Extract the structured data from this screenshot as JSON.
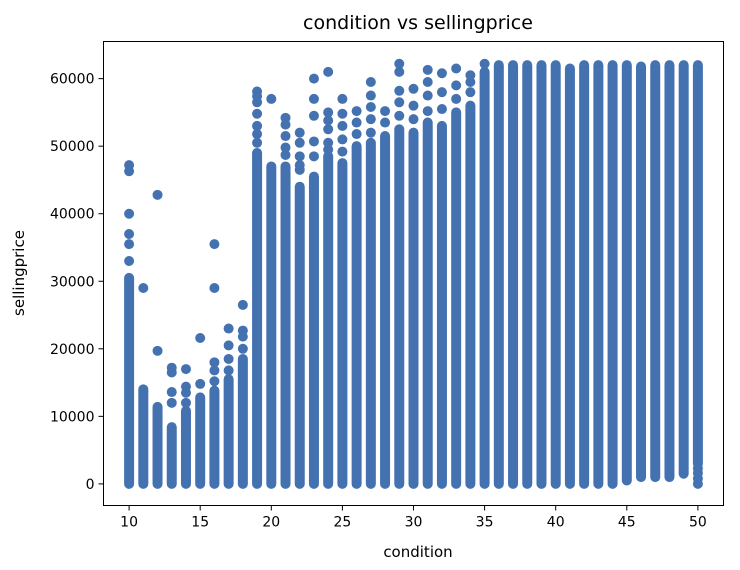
{
  "chart_data": {
    "type": "scatter",
    "title": "condition vs sellingprice",
    "xlabel": "condition",
    "ylabel": "sellingprice",
    "xlim": [
      8.2,
      51.8
    ],
    "ylim": [
      -3200,
      65500
    ],
    "xticks": [
      10,
      15,
      20,
      25,
      30,
      35,
      40,
      45,
      50
    ],
    "yticks": [
      0,
      10000,
      20000,
      30000,
      40000,
      50000,
      60000
    ],
    "marker_color": "#4472b0",
    "grid": false,
    "legend": "none",
    "columns": [
      {
        "x": 10,
        "dense_min": 0,
        "dense_max": 30500,
        "outliers": [
          33000,
          35500,
          37000,
          40000,
          46300,
          47200
        ]
      },
      {
        "x": 11,
        "dense_min": 0,
        "dense_max": 14000,
        "outliers": [
          29000
        ]
      },
      {
        "x": 12,
        "dense_min": 0,
        "dense_max": 11400,
        "outliers": [
          19700,
          42800
        ]
      },
      {
        "x": 13,
        "dense_min": 0,
        "dense_max": 8400,
        "outliers": [
          12000,
          13600,
          16500,
          17200
        ]
      },
      {
        "x": 14,
        "dense_min": 0,
        "dense_max": 10800,
        "outliers": [
          12000,
          13500,
          14400,
          17000
        ]
      },
      {
        "x": 15,
        "dense_min": 0,
        "dense_max": 12800,
        "outliers": [
          14800,
          21600
        ]
      },
      {
        "x": 16,
        "dense_min": 0,
        "dense_max": 13800,
        "outliers": [
          15200,
          16800,
          18000,
          29000,
          35500
        ]
      },
      {
        "x": 17,
        "dense_min": 0,
        "dense_max": 15500,
        "outliers": [
          16800,
          18500,
          20500,
          23000
        ]
      },
      {
        "x": 18,
        "dense_min": 0,
        "dense_max": 18500,
        "outliers": [
          20000,
          21800,
          22700,
          26500
        ]
      },
      {
        "x": 19,
        "dense_min": 0,
        "dense_max": 49000,
        "outliers": [
          50500,
          51800,
          53000,
          54800,
          56500,
          57400,
          58100
        ]
      },
      {
        "x": 20,
        "dense_min": 0,
        "dense_max": 47000,
        "outliers": [
          57000
        ]
      },
      {
        "x": 21,
        "dense_min": 0,
        "dense_max": 47000,
        "outliers": [
          48700,
          49800,
          51500,
          53200,
          54200
        ]
      },
      {
        "x": 22,
        "dense_min": 0,
        "dense_max": 44000,
        "outliers": [
          46500,
          47200,
          48500,
          50500,
          52000
        ]
      },
      {
        "x": 23,
        "dense_min": 0,
        "dense_max": 45500,
        "outliers": [
          48500,
          50700,
          54500,
          57000,
          60000
        ]
      },
      {
        "x": 24,
        "dense_min": 0,
        "dense_max": 48500,
        "outliers": [
          49500,
          50500,
          52500,
          53800,
          55000,
          61000
        ]
      },
      {
        "x": 25,
        "dense_min": 0,
        "dense_max": 47500,
        "outliers": [
          49200,
          51000,
          53000,
          54800,
          57000
        ]
      },
      {
        "x": 26,
        "dense_min": 0,
        "dense_max": 50000,
        "outliers": [
          51800,
          53500,
          55200
        ]
      },
      {
        "x": 27,
        "dense_min": 0,
        "dense_max": 50500,
        "outliers": [
          52000,
          54000,
          55800,
          57500,
          59500
        ]
      },
      {
        "x": 28,
        "dense_min": 0,
        "dense_max": 51500,
        "outliers": [
          53500,
          55200
        ]
      },
      {
        "x": 29,
        "dense_min": 0,
        "dense_max": 52500,
        "outliers": [
          54500,
          56500,
          58200,
          61000,
          62200
        ]
      },
      {
        "x": 30,
        "dense_min": 0,
        "dense_max": 52000,
        "outliers": [
          54000,
          56000,
          58500
        ]
      },
      {
        "x": 31,
        "dense_min": 0,
        "dense_max": 53500,
        "outliers": [
          55200,
          57500,
          59500,
          61300
        ]
      },
      {
        "x": 32,
        "dense_min": 0,
        "dense_max": 53000,
        "outliers": [
          55500,
          58000,
          60800
        ]
      },
      {
        "x": 33,
        "dense_min": 0,
        "dense_max": 55000,
        "outliers": [
          57000,
          59000,
          61500
        ]
      },
      {
        "x": 34,
        "dense_min": 0,
        "dense_max": 56000,
        "outliers": [
          58000,
          59500,
          60500
        ]
      },
      {
        "x": 35,
        "dense_min": 0,
        "dense_max": 61000,
        "outliers": [
          62200
        ]
      },
      {
        "x": 36,
        "dense_min": 0,
        "dense_max": 62000,
        "outliers": []
      },
      {
        "x": 37,
        "dense_min": 0,
        "dense_max": 62000,
        "outliers": []
      },
      {
        "x": 38,
        "dense_min": 0,
        "dense_max": 62000,
        "outliers": []
      },
      {
        "x": 39,
        "dense_min": 0,
        "dense_max": 62000,
        "outliers": []
      },
      {
        "x": 40,
        "dense_min": 0,
        "dense_max": 62000,
        "outliers": []
      },
      {
        "x": 41,
        "dense_min": 0,
        "dense_max": 61500,
        "outliers": []
      },
      {
        "x": 42,
        "dense_min": 0,
        "dense_max": 62000,
        "outliers": []
      },
      {
        "x": 43,
        "dense_min": 0,
        "dense_max": 62000,
        "outliers": []
      },
      {
        "x": 44,
        "dense_min": 0,
        "dense_max": 62000,
        "outliers": []
      },
      {
        "x": 45,
        "dense_min": 500,
        "dense_max": 62000,
        "outliers": []
      },
      {
        "x": 46,
        "dense_min": 1000,
        "dense_max": 61800,
        "outliers": []
      },
      {
        "x": 47,
        "dense_min": 1000,
        "dense_max": 62000,
        "outliers": []
      },
      {
        "x": 48,
        "dense_min": 1000,
        "dense_max": 62000,
        "outliers": []
      },
      {
        "x": 49,
        "dense_min": 1500,
        "dense_max": 62000,
        "outliers": []
      },
      {
        "x": 50,
        "dense_min": 3000,
        "dense_max": 62000,
        "outliers": [
          0,
          800,
          1600,
          2300
        ]
      }
    ]
  }
}
